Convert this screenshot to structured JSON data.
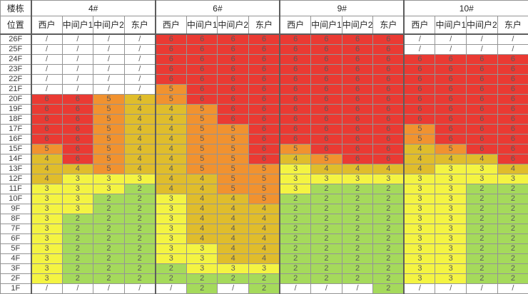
{
  "table": {
    "corner_row1": "楼栋",
    "corner_row2": "位置",
    "buildings": [
      {
        "label": "4#"
      },
      {
        "label": "6#"
      },
      {
        "label": "9#"
      },
      {
        "label": "10#"
      }
    ],
    "unit_headers": [
      "西户",
      "中间户1",
      "中间户2",
      "东户"
    ],
    "empty_value": "/",
    "value_colors": {
      "6": "#ea3a33",
      "5": "#f1922f",
      "4": "#e0bd2b",
      "3": "#f4f442",
      "2": "#a5da5b",
      "/": "#ffffff"
    },
    "rows": [
      {
        "floor": "26F",
        "values": [
          "/",
          "/",
          "/",
          "/",
          "6",
          "6",
          "6",
          "6",
          "6",
          "6",
          "6",
          "6",
          "/",
          "/",
          "/",
          "/"
        ]
      },
      {
        "floor": "25F",
        "values": [
          "/",
          "/",
          "/",
          "/",
          "6",
          "6",
          "6",
          "6",
          "6",
          "6",
          "6",
          "6",
          "/",
          "/",
          "/",
          "/"
        ]
      },
      {
        "floor": "24F",
        "values": [
          "/",
          "/",
          "/",
          "/",
          "6",
          "6",
          "6",
          "6",
          "6",
          "6",
          "6",
          "6",
          "6",
          "6",
          "6",
          "6"
        ]
      },
      {
        "floor": "23F",
        "values": [
          "/",
          "/",
          "/",
          "/",
          "6",
          "6",
          "6",
          "6",
          "6",
          "6",
          "6",
          "6",
          "6",
          "6",
          "6",
          "6"
        ]
      },
      {
        "floor": "22F",
        "values": [
          "/",
          "/",
          "/",
          "/",
          "6",
          "6",
          "6",
          "6",
          "6",
          "6",
          "6",
          "6",
          "6",
          "6",
          "6",
          "6"
        ]
      },
      {
        "floor": "21F",
        "values": [
          "/",
          "/",
          "/",
          "/",
          "5",
          "6",
          "6",
          "6",
          "6",
          "6",
          "6",
          "6",
          "6",
          "6",
          "6",
          "6"
        ]
      },
      {
        "floor": "20F",
        "values": [
          "6",
          "6",
          "5",
          "4",
          "5",
          "6",
          "6",
          "6",
          "6",
          "6",
          "6",
          "6",
          "6",
          "6",
          "6",
          "6"
        ]
      },
      {
        "floor": "19F",
        "values": [
          "6",
          "6",
          "5",
          "4",
          "4",
          "5",
          "6",
          "6",
          "6",
          "6",
          "6",
          "6",
          "6",
          "6",
          "6",
          "6"
        ]
      },
      {
        "floor": "18F",
        "values": [
          "6",
          "6",
          "5",
          "4",
          "4",
          "5",
          "6",
          "6",
          "6",
          "6",
          "6",
          "6",
          "6",
          "6",
          "6",
          "6"
        ]
      },
      {
        "floor": "17F",
        "values": [
          "6",
          "6",
          "5",
          "4",
          "4",
          "5",
          "5",
          "6",
          "6",
          "6",
          "6",
          "6",
          "5",
          "6",
          "6",
          "6"
        ]
      },
      {
        "floor": "16F",
        "values": [
          "6",
          "6",
          "5",
          "4",
          "4",
          "5",
          "5",
          "6",
          "6",
          "6",
          "6",
          "6",
          "5",
          "6",
          "6",
          "6"
        ]
      },
      {
        "floor": "15F",
        "values": [
          "5",
          "6",
          "5",
          "4",
          "4",
          "5",
          "5",
          "6",
          "5",
          "6",
          "6",
          "6",
          "4",
          "5",
          "6",
          "6"
        ]
      },
      {
        "floor": "14F",
        "values": [
          "4",
          "6",
          "5",
          "4",
          "4",
          "5",
          "5",
          "6",
          "4",
          "5",
          "6",
          "6",
          "4",
          "4",
          "4",
          "6"
        ]
      },
      {
        "floor": "13F",
        "values": [
          "4",
          "4",
          "5",
          "4",
          "4",
          "5",
          "5",
          "5",
          "3",
          "4",
          "4",
          "4",
          "4",
          "3",
          "3",
          "4"
        ]
      },
      {
        "floor": "12F",
        "values": [
          "4",
          "3",
          "3",
          "3",
          "4",
          "4",
          "5",
          "5",
          "3",
          "3",
          "3",
          "3",
          "3",
          "3",
          "3",
          "3"
        ]
      },
      {
        "floor": "11F",
        "values": [
          "3",
          "3",
          "3",
          "2",
          "4",
          "4",
          "5",
          "5",
          "3",
          "2",
          "2",
          "2",
          "3",
          "3",
          "2",
          "2"
        ]
      },
      {
        "floor": "10F",
        "values": [
          "3",
          "3",
          "2",
          "2",
          "3",
          "4",
          "4",
          "5",
          "2",
          "2",
          "2",
          "2",
          "3",
          "3",
          "2",
          "2"
        ]
      },
      {
        "floor": "9F",
        "values": [
          "3",
          "3",
          "2",
          "2",
          "3",
          "4",
          "4",
          "4",
          "2",
          "2",
          "2",
          "2",
          "3",
          "3",
          "2",
          "2"
        ]
      },
      {
        "floor": "8F",
        "values": [
          "3",
          "2",
          "2",
          "2",
          "3",
          "4",
          "4",
          "4",
          "2",
          "2",
          "2",
          "2",
          "3",
          "3",
          "2",
          "2"
        ]
      },
      {
        "floor": "7F",
        "values": [
          "3",
          "2",
          "2",
          "2",
          "3",
          "4",
          "4",
          "4",
          "2",
          "2",
          "2",
          "2",
          "3",
          "3",
          "2",
          "2"
        ]
      },
      {
        "floor": "6F",
        "values": [
          "3",
          "2",
          "2",
          "2",
          "3",
          "4",
          "4",
          "4",
          "2",
          "2",
          "2",
          "2",
          "3",
          "3",
          "2",
          "2"
        ]
      },
      {
        "floor": "5F",
        "values": [
          "3",
          "2",
          "2",
          "2",
          "3",
          "3",
          "4",
          "4",
          "2",
          "2",
          "2",
          "2",
          "3",
          "3",
          "2",
          "2"
        ]
      },
      {
        "floor": "4F",
        "values": [
          "3",
          "2",
          "2",
          "2",
          "3",
          "3",
          "4",
          "4",
          "2",
          "2",
          "2",
          "2",
          "3",
          "3",
          "2",
          "2"
        ]
      },
      {
        "floor": "3F",
        "values": [
          "3",
          "2",
          "2",
          "2",
          "2",
          "3",
          "3",
          "3",
          "2",
          "2",
          "2",
          "2",
          "3",
          "3",
          "2",
          "2"
        ]
      },
      {
        "floor": "2F",
        "values": [
          "3",
          "2",
          "2",
          "2",
          "2",
          "2",
          "2",
          "2",
          "2",
          "2",
          "2",
          "2",
          "3",
          "3",
          "2",
          "2"
        ]
      },
      {
        "floor": "1F",
        "values": [
          "/",
          "/",
          "/",
          "/",
          "/",
          "2",
          "/",
          "2",
          "/",
          "/",
          "/",
          "2",
          "/",
          "/",
          "/",
          "/"
        ]
      }
    ]
  }
}
